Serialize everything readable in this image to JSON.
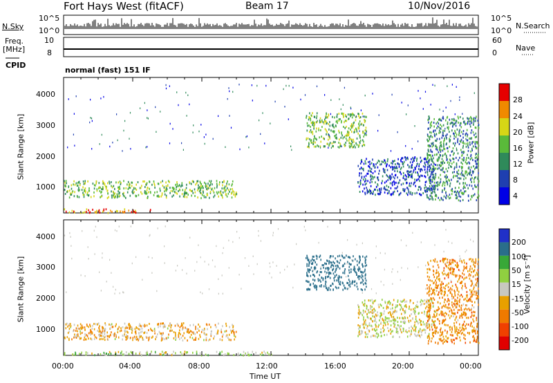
{
  "header": {
    "station": "Fort Hays West (fitACF)",
    "beam": "Beam 17",
    "date": "10/Nov/2016"
  },
  "top_panel": {
    "left_label": "N.Sky",
    "right_label": "N.Search",
    "left_ticks": [
      "10^5",
      "10^0"
    ],
    "right_ticks": [
      "10^5",
      "10^0"
    ]
  },
  "freq_panel": {
    "left_label_1": "Freq.",
    "left_label_2": "[MHz]",
    "right_label": "Nave",
    "left_ticks": [
      "10",
      "8"
    ],
    "right_ticks": [
      "60",
      "0"
    ]
  },
  "cpid": {
    "label": "CPID",
    "text": "normal (fast) 151 IF"
  },
  "x_axis": {
    "ticks": [
      "00:00",
      "04:00",
      "08:00",
      "12:00",
      "16:00",
      "20:00",
      "00:00"
    ],
    "label": "Time UT"
  },
  "y_axis": {
    "label": "Slant Range [km]",
    "ticks": [
      "1000",
      "2000",
      "3000",
      "4000"
    ]
  },
  "power_bar": {
    "label": "Power [dB]",
    "ticks": [
      "4",
      "8",
      "12",
      "16",
      "20",
      "24",
      "28"
    ],
    "colors": [
      "#0000e6",
      "#1f3fb0",
      "#2f8a5a",
      "#5aba3a",
      "#d6d616",
      "#f08a00",
      "#e60000"
    ]
  },
  "velocity_bar": {
    "label": "Velocity [m s⁻¹]",
    "ticks": [
      "200",
      "100",
      "50",
      "15",
      "-15",
      "-50",
      "-100",
      "-200"
    ],
    "colors": [
      "#2030c8",
      "#2a6e8a",
      "#38a838",
      "#90d040",
      "#c8c8c0",
      "#e8a000",
      "#f07a00",
      "#f04000",
      "#e00000"
    ]
  },
  "chart_data": [
    {
      "type": "heatmap",
      "title": "",
      "xlabel": "",
      "ylabel": "Slant Range [km]",
      "colorbar_label": "Power [dB]",
      "xlim": [
        0,
        24
      ],
      "ylim": [
        200,
        4500
      ],
      "features": [
        {
          "t0": 0.0,
          "t1": 10.0,
          "r0": 700,
          "r1": 1250,
          "value": 16
        },
        {
          "t0": 0.0,
          "t1": 5.0,
          "r0": 230,
          "r1": 350,
          "value": 24
        },
        {
          "t0": 14.0,
          "t1": 17.5,
          "r0": 2300,
          "r1": 3400,
          "value": 16
        },
        {
          "t0": 17.0,
          "t1": 21.5,
          "r0": 800,
          "r1": 2000,
          "value": 8
        },
        {
          "t0": 21.0,
          "t1": 24.0,
          "r0": 600,
          "r1": 3300,
          "value": 12
        }
      ]
    },
    {
      "type": "heatmap",
      "title": "",
      "xlabel": "Time UT",
      "ylabel": "Slant Range [km]",
      "colorbar_label": "Velocity [m s⁻¹]",
      "xlim": [
        0,
        24
      ],
      "ylim": [
        200,
        4500
      ],
      "features": [
        {
          "t0": 0.0,
          "t1": 10.0,
          "r0": 700,
          "r1": 1250,
          "value": -30
        },
        {
          "t0": 0.0,
          "t1": 12.0,
          "r0": 230,
          "r1": 350,
          "value": 20
        },
        {
          "t0": 14.0,
          "t1": 17.5,
          "r0": 2300,
          "r1": 3400,
          "value": 150
        },
        {
          "t0": 17.0,
          "t1": 21.5,
          "r0": 800,
          "r1": 2000,
          "value": 0
        },
        {
          "t0": 21.0,
          "t1": 24.0,
          "r0": 600,
          "r1": 3300,
          "value": -60
        }
      ]
    }
  ]
}
